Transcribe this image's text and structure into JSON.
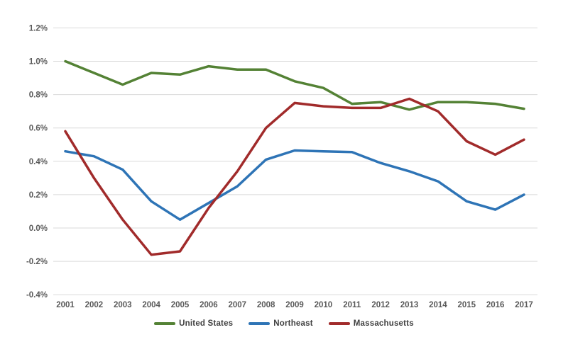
{
  "chart_data": {
    "type": "line",
    "title": "",
    "xlabel": "",
    "ylabel": "",
    "unit": "percent",
    "grid": true,
    "legend_position": "bottom",
    "ylim": [
      -0.4,
      1.2
    ],
    "y_ticks": [
      {
        "value": 1.2,
        "label": "1.2%"
      },
      {
        "value": 1.0,
        "label": "1.0%"
      },
      {
        "value": 0.8,
        "label": "0.8%"
      },
      {
        "value": 0.6,
        "label": "0.6%"
      },
      {
        "value": 0.4,
        "label": "0.4%"
      },
      {
        "value": 0.2,
        "label": "0.2%"
      },
      {
        "value": 0.0,
        "label": "0.0%"
      },
      {
        "value": -0.2,
        "label": "-0.2%"
      },
      {
        "value": -0.4,
        "label": "-0.4%"
      }
    ],
    "categories": [
      "2001",
      "2002",
      "2003",
      "2004",
      "2005",
      "2006",
      "2007",
      "2008",
      "2009",
      "2010",
      "2011",
      "2012",
      "2013",
      "2014",
      "2015",
      "2016",
      "2017"
    ],
    "series": [
      {
        "name": "United States",
        "color": "#548235",
        "values": [
          1.0,
          0.93,
          0.86,
          0.93,
          0.92,
          0.97,
          0.95,
          0.95,
          0.88,
          0.84,
          0.745,
          0.755,
          0.71,
          0.755,
          0.755,
          0.745,
          0.715
        ]
      },
      {
        "name": "Northeast",
        "color": "#2E74B6",
        "values": [
          0.46,
          0.43,
          0.35,
          0.16,
          0.05,
          0.15,
          0.25,
          0.41,
          0.465,
          0.46,
          0.455,
          0.39,
          0.34,
          0.28,
          0.16,
          0.11,
          0.2
        ]
      },
      {
        "name": "Massachusetts",
        "color": "#A12B2B",
        "values": [
          0.58,
          0.3,
          0.05,
          -0.16,
          -0.14,
          0.12,
          0.34,
          0.6,
          0.75,
          0.73,
          0.72,
          0.72,
          0.775,
          0.7,
          0.52,
          0.44,
          0.53
        ]
      }
    ]
  },
  "colors": {
    "background": "#FFFFFF",
    "gridline": "#D9D9D9",
    "axis_text": "#595959",
    "legend_text": "#404040"
  }
}
